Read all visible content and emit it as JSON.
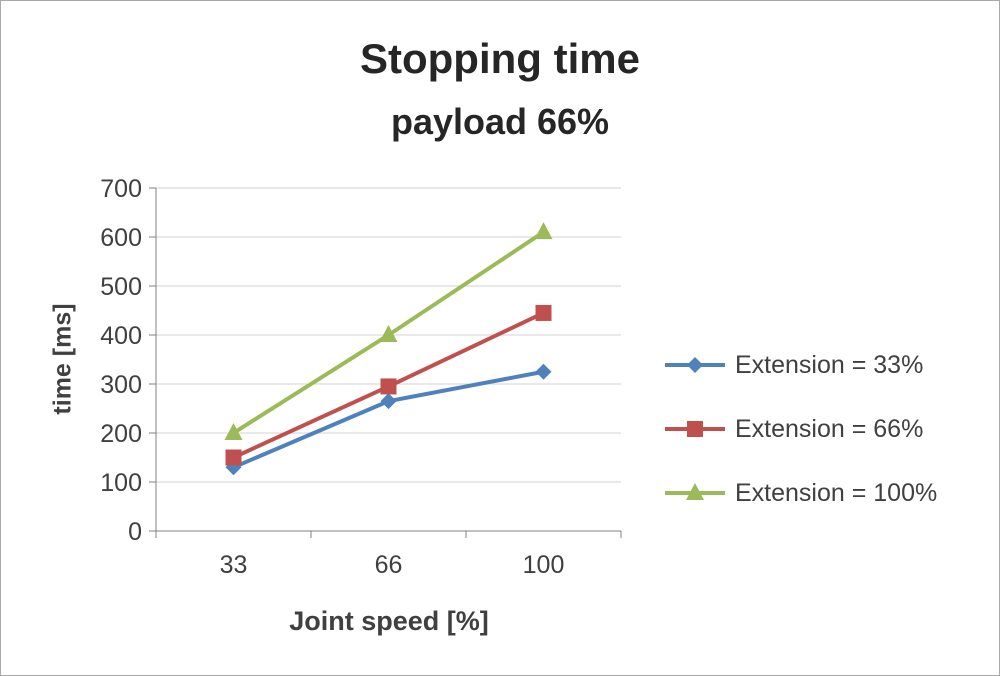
{
  "title": "Stopping time",
  "subtitle": "payload 66%",
  "axes": {
    "ylabel": "time [ms]",
    "xlabel": "Joint speed [%]"
  },
  "chart_data": {
    "type": "line",
    "categories": [
      "33",
      "66",
      "100"
    ],
    "series": [
      {
        "name": "Extension = 33%",
        "values": [
          130,
          265,
          325
        ],
        "color": "#4F81BD",
        "marker": "diamond"
      },
      {
        "name": "Extension = 66%",
        "values": [
          150,
          295,
          445
        ],
        "color": "#C0504D",
        "marker": "square"
      },
      {
        "name": "Extension = 100%",
        "values": [
          200,
          400,
          610
        ],
        "color": "#9BBB59",
        "marker": "triangle"
      }
    ],
    "title": "Stopping time",
    "subtitle": "payload 66%",
    "xlabel": "Joint speed [%]",
    "ylabel": "time [ms]",
    "ylim": [
      0,
      700
    ],
    "ytick_step": 100,
    "grid": true,
    "legend_position": "right",
    "gridline_color": "#d3d3d3",
    "axis_color": "#808080",
    "tick_label_color": "#404040"
  }
}
